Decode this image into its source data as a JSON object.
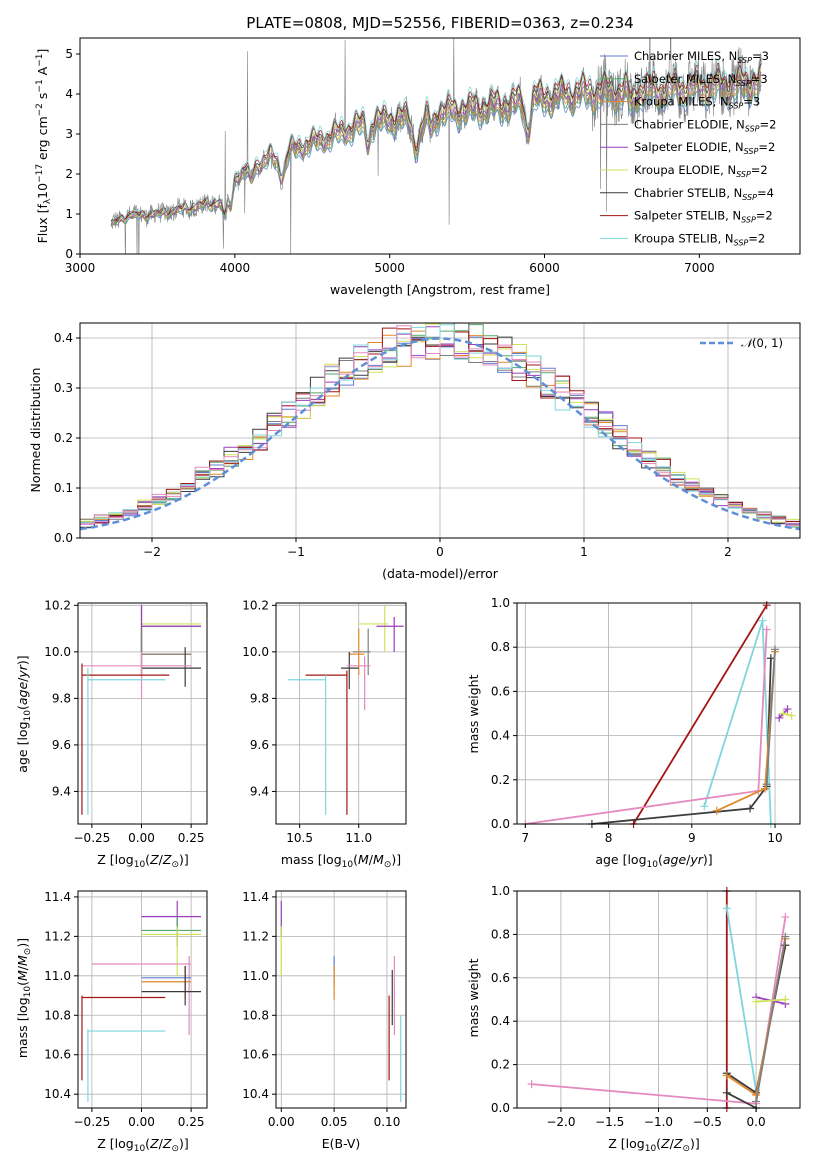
{
  "colors": {
    "Chabrier MILES": "#5b7fcf",
    "Salpeter MILES": "#55a868",
    "Kroupa MILES": "#e08a2c",
    "Chabrier ELODIE": "#7f7f7f",
    "Salpeter ELODIE": "#9b3fbf",
    "Kroupa ELODIE": "#cfe25a",
    "Chabrier STELIB": "#3c3c3c",
    "Salpeter STELIB": "#a41515",
    "Kroupa STELIB": "#7fd6dc",
    "Extra pink": "#e48ac0",
    "Normal curve": "#5f8fd6"
  },
  "chart_data": [
    {
      "id": "spectrum",
      "type": "line",
      "title": "PLATE=0808, MJD=52556, FIBERID=0363, z=0.234",
      "xlabel": "wavelength [Angstrom, rest frame]",
      "ylabel": "Flux [f_λ 10^-17 erg cm^-2 s^-1 A^-1]",
      "xlim": [
        3000,
        7650
      ],
      "ylim": [
        0,
        5.4
      ],
      "xticks": [
        "3000",
        "4000",
        "5000",
        "6000",
        "7000"
      ],
      "yticks": [
        "0",
        "1",
        "2",
        "3",
        "4",
        "5"
      ],
      "legend_position": "right",
      "legend": [
        {
          "label": "Chabrier MILES, N_SSP=3",
          "prefix": "Chabrier MILES, N",
          "sub": "SSP",
          "suffix": "=3",
          "color": "#5b7fcf"
        },
        {
          "label": "Salpeter MILES, N_SSP=3",
          "prefix": "Salpeter MILES, N",
          "sub": "SSP",
          "suffix": "=3",
          "color": "#55a868"
        },
        {
          "label": "Kroupa MILES, N_SSP=3",
          "prefix": "Kroupa MILES, N",
          "sub": "SSP",
          "suffix": "=3",
          "color": "#e08a2c"
        },
        {
          "label": "Chabrier ELODIE, N_SSP=2",
          "prefix": "Chabrier ELODIE, N",
          "sub": "SSP",
          "suffix": "=2",
          "color": "#7f7f7f"
        },
        {
          "label": "Salpeter ELODIE, N_SSP=2",
          "prefix": "Salpeter ELODIE, N",
          "sub": "SSP",
          "suffix": "=2",
          "color": "#9b3fbf"
        },
        {
          "label": "Kroupa ELODIE, N_SSP=2",
          "prefix": "Kroupa ELODIE, N",
          "sub": "SSP",
          "suffix": "=2",
          "color": "#cfe25a"
        },
        {
          "label": "Chabrier STELIB, N_SSP=4",
          "prefix": "Chabrier STELIB, N",
          "sub": "SSP",
          "suffix": "=4",
          "color": "#3c3c3c"
        },
        {
          "label": "Salpeter STELIB, N_SSP=2",
          "prefix": "Salpeter STELIB, N",
          "sub": "SSP",
          "suffix": "=2",
          "color": "#a41515"
        },
        {
          "label": "Kroupa STELIB, N_SSP=2",
          "prefix": "Kroupa STELIB, N",
          "sub": "SSP",
          "suffix": "=2",
          "color": "#7fd6dc"
        }
      ],
      "continuum": {
        "x": [
          3200,
          3300,
          3500,
          3700,
          3900,
          4000,
          4200,
          4400,
          4600,
          4800,
          5000,
          5200,
          5400,
          5600,
          5800,
          6000,
          6200,
          6400,
          6600,
          6800,
          7000,
          7200,
          7400
        ],
        "y": [
          0.75,
          0.95,
          1.0,
          1.15,
          1.3,
          1.9,
          2.35,
          2.65,
          2.9,
          3.2,
          3.35,
          3.45,
          3.55,
          3.65,
          3.75,
          3.9,
          4.0,
          4.05,
          4.05,
          4.1,
          4.15,
          4.2,
          4.3
        ]
      }
    },
    {
      "id": "residuals",
      "type": "histogram",
      "xlabel": "(data-model)/error",
      "ylabel": "Normed distribution",
      "xlim": [
        -2.5,
        2.5
      ],
      "ylim": [
        0,
        0.43
      ],
      "xticks": [
        "−2",
        "−1",
        "0",
        "1",
        "2"
      ],
      "yticks": [
        "0.0",
        "0.1",
        "0.2",
        "0.3",
        "0.4"
      ],
      "bin_width": 0.1,
      "legend_position": "top-right",
      "normal_label": "N(0, 1)"
    },
    {
      "id": "age_vs_Z",
      "type": "scatter",
      "xlabel": "Z [log10(Z/Z⊙)]",
      "ylabel": "age [log10(age/yr)]",
      "xlim": [
        -0.32,
        0.33
      ],
      "ylim": [
        9.26,
        10.21
      ],
      "xticks": [
        "−0.25",
        "0.00",
        "0.25"
      ],
      "yticks": [
        "9.4",
        "9.6",
        "9.8",
        "10.0",
        "10.2"
      ],
      "points": [
        {
          "c": "#cfe25a",
          "x": 0.0,
          "xl": 0.0,
          "xr": 0.3,
          "y": 10.12,
          "yl": 10.0,
          "yh": 10.2
        },
        {
          "c": "#55a868",
          "x": 0.0,
          "xl": 0.0,
          "xr": 0.3,
          "y": 10.11,
          "yl": 10.0,
          "yh": 10.2
        },
        {
          "c": "#9b3fbf",
          "x": 0.0,
          "xl": 0.0,
          "xr": 0.3,
          "y": 10.11,
          "yl": 10.0,
          "yh": 10.2
        },
        {
          "c": "#5b7fcf",
          "x": 0.0,
          "xl": 0.0,
          "xr": 0.25,
          "y": 9.99,
          "yl": 9.9,
          "yh": 10.1
        },
        {
          "c": "#e08a2c",
          "x": 0.0,
          "xl": 0.0,
          "xr": 0.25,
          "y": 9.99,
          "yl": 9.9,
          "yh": 10.1
        },
        {
          "c": "#7f7f7f",
          "x": 0.0,
          "xl": 0.0,
          "xr": 0.25,
          "y": 9.99,
          "yl": 9.9,
          "yh": 10.1
        },
        {
          "c": "#3c3c3c",
          "x": 0.22,
          "xl": 0.0,
          "xr": 0.3,
          "y": 9.93,
          "yl": 9.85,
          "yh": 10.02
        },
        {
          "c": "#e48ac0",
          "x": 0.0,
          "xl": -0.3,
          "xr": 0.25,
          "y": 9.94,
          "yl": 9.8,
          "yh": 10.0
        },
        {
          "c": "#a41515",
          "x": -0.3,
          "xl": -0.3,
          "xr": 0.14,
          "y": 9.9,
          "yl": 9.3,
          "yh": 9.95
        },
        {
          "c": "#7fd6dc",
          "x": -0.27,
          "xl": -0.27,
          "xr": 0.12,
          "y": 9.88,
          "yl": 9.3,
          "yh": 9.93
        }
      ]
    },
    {
      "id": "age_vs_mass",
      "type": "scatter",
      "xlabel": "mass [log10(M/M⊙)]",
      "ylabel": "",
      "xlim": [
        10.3,
        11.4
      ],
      "ylim": [
        9.26,
        10.21
      ],
      "xticks": [
        "10.5",
        "11.0"
      ],
      "yticks": [
        "9.4",
        "9.6",
        "9.8",
        "10.0",
        "10.2"
      ],
      "points": [
        {
          "c": "#cfe25a",
          "x": 11.22,
          "xl": 11.0,
          "xr": 11.25,
          "y": 10.12,
          "yl": 10.0,
          "yh": 10.2
        },
        {
          "c": "#9b3fbf",
          "x": 11.3,
          "xl": 11.15,
          "xr": 11.38,
          "y": 10.11,
          "yl": 10.0,
          "yh": 10.15
        },
        {
          "c": "#7f7f7f",
          "x": 11.08,
          "xl": 10.95,
          "xr": 11.1,
          "y": 10.0,
          "yl": 9.9,
          "yh": 10.1
        },
        {
          "c": "#e08a2c",
          "x": 11.0,
          "xl": 10.92,
          "xr": 11.05,
          "y": 9.99,
          "yl": 9.9,
          "yh": 10.1
        },
        {
          "c": "#3c3c3c",
          "x": 10.92,
          "xl": 10.85,
          "xr": 11.0,
          "y": 9.93,
          "yl": 9.84,
          "yh": 10.0
        },
        {
          "c": "#e48ac0",
          "x": 11.05,
          "xl": 10.9,
          "xr": 11.1,
          "y": 9.94,
          "yl": 9.75,
          "yh": 9.98
        },
        {
          "c": "#a41515",
          "x": 10.9,
          "xl": 10.55,
          "xr": 10.9,
          "y": 9.9,
          "yl": 9.3,
          "yh": 9.92
        },
        {
          "c": "#7fd6dc",
          "x": 10.72,
          "xl": 10.4,
          "xr": 10.72,
          "y": 9.88,
          "yl": 9.3,
          "yh": 9.9
        }
      ]
    },
    {
      "id": "weight_vs_age",
      "type": "line",
      "xlabel": "age [log10(age/yr)]",
      "ylabel": "mass weight",
      "xlim": [
        6.9,
        10.3
      ],
      "ylim": [
        0,
        1
      ],
      "xticks": [
        "7",
        "8",
        "9",
        "10"
      ],
      "yticks": [
        "0.0",
        "0.2",
        "0.4",
        "0.6",
        "0.8",
        "1.0"
      ],
      "series": [
        {
          "c": "#a41515",
          "x": [
            8.3,
            9.9
          ],
          "y": [
            0.0,
            0.99
          ]
        },
        {
          "c": "#7fd6dc",
          "x": [
            9.15,
            9.85,
            9.95
          ],
          "y": [
            0.08,
            0.92,
            0.0
          ]
        },
        {
          "c": "#e48ac0",
          "x": [
            7.0,
            9.8,
            9.9
          ],
          "y": [
            0.0,
            0.15,
            0.88
          ]
        },
        {
          "c": "#3c3c3c",
          "x": [
            7.8,
            9.7,
            9.9,
            9.95
          ],
          "y": [
            0.0,
            0.07,
            0.17,
            0.75
          ]
        },
        {
          "c": "#e08a2c",
          "x": [
            9.3,
            9.88,
            10.0
          ],
          "y": [
            0.06,
            0.16,
            0.78
          ]
        },
        {
          "c": "#7f7f7f",
          "x": [
            9.9,
            10.0
          ],
          "y": [
            0.18,
            0.79
          ]
        },
        {
          "c": "#9b3fbf",
          "x": [
            10.05,
            10.15
          ],
          "y": [
            0.48,
            0.52
          ]
        },
        {
          "c": "#cfe25a",
          "x": [
            10.1,
            10.2
          ],
          "y": [
            0.5,
            0.49
          ]
        }
      ]
    },
    {
      "id": "mass_vs_Z",
      "type": "scatter",
      "xlabel": "Z [log10(Z/Z⊙)]",
      "ylabel": "mass [log10(M/M⊙)]",
      "xlim": [
        -0.32,
        0.33
      ],
      "ylim": [
        10.33,
        11.43
      ],
      "xticks": [
        "−0.25",
        "0.00",
        "0.25"
      ],
      "yticks": [
        "10.4",
        "10.6",
        "10.8",
        "11.0",
        "11.2",
        "11.4"
      ],
      "points": [
        {
          "c": "#9b3fbf",
          "x": 0.18,
          "xl": 0.0,
          "xr": 0.3,
          "y": 11.3,
          "yl": 11.2,
          "yh": 11.38
        },
        {
          "c": "#55a868",
          "x": 0.18,
          "xl": 0.0,
          "xr": 0.3,
          "y": 11.23,
          "yl": 11.15,
          "yh": 11.3
        },
        {
          "c": "#cfe25a",
          "x": 0.18,
          "xl": 0.0,
          "xr": 0.3,
          "y": 11.21,
          "yl": 11.0,
          "yh": 11.25
        },
        {
          "c": "#e48ac0",
          "x": 0.24,
          "xl": -0.25,
          "xr": 0.25,
          "y": 11.06,
          "yl": 10.7,
          "yh": 11.1
        },
        {
          "c": "#5b7fcf",
          "x": 0.22,
          "xl": 0.0,
          "xr": 0.25,
          "y": 10.99,
          "yl": 10.9,
          "yh": 11.05
        },
        {
          "c": "#e08a2c",
          "x": 0.22,
          "xl": 0.0,
          "xr": 0.25,
          "y": 10.97,
          "yl": 10.88,
          "yh": 11.05
        },
        {
          "c": "#3c3c3c",
          "x": 0.22,
          "xl": 0.0,
          "xr": 0.3,
          "y": 10.92,
          "yl": 10.85,
          "yh": 11.05
        },
        {
          "c": "#a41515",
          "x": -0.3,
          "xl": -0.3,
          "xr": 0.12,
          "y": 10.89,
          "yl": 10.47,
          "yh": 10.9
        },
        {
          "c": "#7fd6dc",
          "x": -0.27,
          "xl": -0.27,
          "xr": 0.12,
          "y": 10.72,
          "yl": 10.36,
          "yh": 10.73
        }
      ]
    },
    {
      "id": "mass_vs_EBV",
      "type": "scatter",
      "xlabel": "E(B-V)",
      "ylabel": "",
      "xlim": [
        -0.005,
        0.118
      ],
      "ylim": [
        10.33,
        11.43
      ],
      "xticks": [
        "0.00",
        "0.05",
        "0.10"
      ],
      "yticks": [
        "10.4",
        "10.6",
        "10.8",
        "11.0",
        "11.2",
        "11.4"
      ],
      "points": [
        {
          "c": "#9b3fbf",
          "x": 0.0,
          "y": 11.3,
          "yl": 11.2,
          "yh": 11.38
        },
        {
          "c": "#cfe25a",
          "x": 0.0,
          "y": 11.1,
          "yl": 11.0,
          "yh": 11.25
        },
        {
          "c": "#5b7fcf",
          "x": 0.05,
          "y": 11.0,
          "yl": 10.95,
          "yh": 11.1
        },
        {
          "c": "#e08a2c",
          "x": 0.05,
          "y": 10.98,
          "yl": 10.88,
          "yh": 11.05
        },
        {
          "c": "#e48ac0",
          "x": 0.107,
          "y": 11.0,
          "yl": 10.7,
          "yh": 11.1
        },
        {
          "c": "#3c3c3c",
          "x": 0.105,
          "y": 10.9,
          "yl": 10.75,
          "yh": 11.03
        },
        {
          "c": "#a41515",
          "x": 0.102,
          "y": 10.72,
          "yl": 10.47,
          "yh": 10.9
        },
        {
          "c": "#7fd6dc",
          "x": 0.113,
          "y": 10.6,
          "yl": 10.36,
          "yh": 10.8
        }
      ]
    },
    {
      "id": "weight_vs_Z",
      "type": "line",
      "xlabel": "Z [log10(Z/Z⊙)]",
      "ylabel": "mass weight",
      "xlim": [
        -2.45,
        0.45
      ],
      "ylim": [
        0,
        1
      ],
      "xticks": [
        "−2.0",
        "−1.5",
        "−1.0",
        "−0.5",
        "0.0"
      ],
      "yticks": [
        "0.0",
        "0.2",
        "0.4",
        "0.6",
        "0.8",
        "1.0"
      ],
      "series": [
        {
          "c": "#a41515",
          "x": [
            -0.3,
            -0.3
          ],
          "y": [
            0.0,
            1.0
          ]
        },
        {
          "c": "#7fd6dc",
          "x": [
            -0.3,
            0.0,
            0.0
          ],
          "y": [
            0.92,
            0.08,
            0.0
          ]
        },
        {
          "c": "#e48ac0",
          "x": [
            -2.3,
            0.0,
            0.3
          ],
          "y": [
            0.11,
            0.02,
            0.88
          ]
        },
        {
          "c": "#3c3c3c",
          "x": [
            -0.3,
            0.0,
            0.3
          ],
          "y": [
            0.16,
            0.07,
            0.75
          ]
        },
        {
          "c": "#3c3c3c",
          "x": [
            -0.3,
            0.0
          ],
          "y": [
            0.07,
            0.0
          ]
        },
        {
          "c": "#e08a2c",
          "x": [
            -0.3,
            0.0,
            0.3
          ],
          "y": [
            0.15,
            0.06,
            0.78
          ]
        },
        {
          "c": "#7f7f7f",
          "x": [
            0.0,
            0.3
          ],
          "y": [
            0.03,
            0.79
          ]
        },
        {
          "c": "#9b3fbf",
          "x": [
            0.0,
            0.3
          ],
          "y": [
            0.51,
            0.48
          ]
        },
        {
          "c": "#cfe25a",
          "x": [
            0.0,
            0.3
          ],
          "y": [
            0.49,
            0.5
          ]
        }
      ]
    }
  ]
}
